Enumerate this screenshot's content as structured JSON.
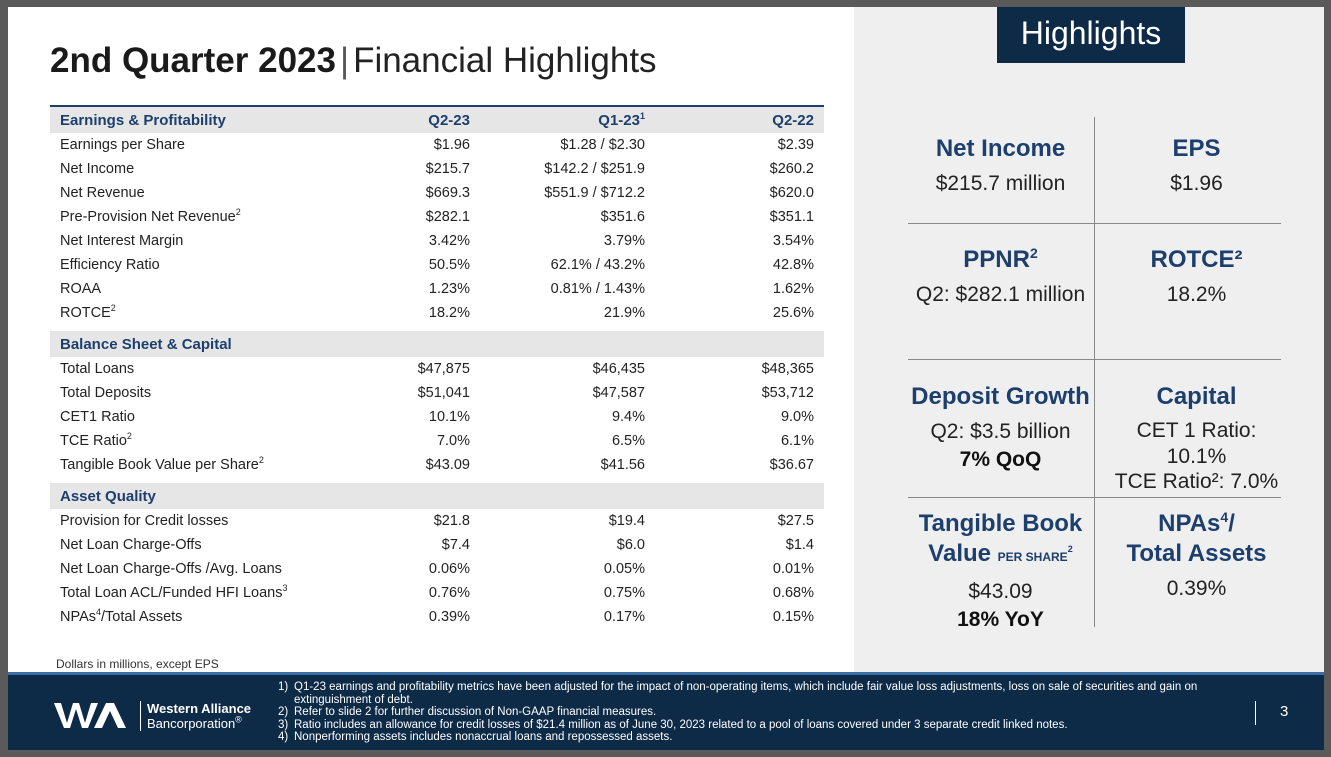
{
  "title": {
    "bold": "2nd Quarter 2023",
    "sep": "|",
    "rest": "Financial Highlights"
  },
  "columns": {
    "c1": "Q2-23",
    "c2": "Q1-23",
    "c2_sup": "1",
    "c3": "Q2-22"
  },
  "sections": {
    "earnings": "Earnings & Profitability",
    "balance": "Balance Sheet & Capital",
    "asset": "Asset Quality"
  },
  "rows": {
    "eps": {
      "label": "Earnings per Share",
      "v1": "$1.96",
      "v2": "$1.28 / $2.30",
      "v3": "$2.39"
    },
    "ni": {
      "label": "Net Income",
      "v1": "$215.7",
      "v2": "$142.2 / $251.9",
      "v3": "$260.2"
    },
    "nr": {
      "label": "Net Revenue",
      "v1": "$669.3",
      "v2": "$551.9 / $712.2",
      "v3": "$620.0"
    },
    "ppnr": {
      "label": "Pre-Provision Net Revenue",
      "sup": "2",
      "v1": "$282.1",
      "v2": "$351.6",
      "v3": "$351.1"
    },
    "nim": {
      "label": "Net Interest Margin",
      "v1": "3.42%",
      "v2": "3.79%",
      "v3": "3.54%"
    },
    "eff": {
      "label": "Efficiency Ratio",
      "v1": "50.5%",
      "v2": "62.1% / 43.2%",
      "v3": "42.8%"
    },
    "roaa": {
      "label": "ROAA",
      "v1": "1.23%",
      "v2": "0.81% / 1.43%",
      "v3": "1.62%"
    },
    "rotce": {
      "label": "ROTCE",
      "sup": "2",
      "v1": "18.2%",
      "v2": "21.9%",
      "v3": "25.6%"
    },
    "loans": {
      "label": "Total Loans",
      "v1": "$47,875",
      "v2": "$46,435",
      "v3": "$48,365"
    },
    "deposits": {
      "label": "Total Deposits",
      "v1": "$51,041",
      "v2": "$47,587",
      "v3": "$53,712"
    },
    "cet1": {
      "label": "CET1 Ratio",
      "v1": "10.1%",
      "v2": "9.4%",
      "v3": "9.0%"
    },
    "tce": {
      "label": "TCE Ratio",
      "sup": "2",
      "v1": "7.0%",
      "v2": "6.5%",
      "v3": "6.1%"
    },
    "tbv": {
      "label": "Tangible Book Value per Share",
      "sup": "2",
      "v1": "$43.09",
      "v2": "$41.56",
      "v3": "$36.67"
    },
    "prov": {
      "label": "Provision for Credit losses",
      "v1": "$21.8",
      "v2": "$19.4",
      "v3": "$27.5"
    },
    "nco": {
      "label": "Net Loan Charge-Offs",
      "v1": "$7.4",
      "v2": "$6.0",
      "v3": "$1.4"
    },
    "ncoavg": {
      "label": "Net Loan Charge-Offs /Avg. Loans",
      "v1": "0.06%",
      "v2": "0.05%",
      "v3": "0.01%"
    },
    "acl": {
      "label": "Total Loan ACL/Funded HFI Loans",
      "sup": "3",
      "v1": "0.76%",
      "v2": "0.75%",
      "v3": "0.68%"
    },
    "npa": {
      "label": "NPAs",
      "sup": "4",
      "label_rest": "/Total Assets",
      "v1": "0.39%",
      "v2": "0.17%",
      "v3": "0.15%"
    }
  },
  "note": "Dollars in millions, except EPS",
  "highlights": {
    "tag": "Highlights",
    "net_income": {
      "title": "Net Income",
      "value": "$215.7 million"
    },
    "eps": {
      "title": "EPS",
      "value": "$1.96"
    },
    "ppnr": {
      "title": "PPNR",
      "sup": "2",
      "value": "Q2: $282.1 million"
    },
    "rotce": {
      "title": "ROTCE²",
      "value": "18.2%"
    },
    "deposit": {
      "title": "Deposit Growth",
      "value": "Q2: $3.5 billion",
      "bold": "7% QoQ"
    },
    "capital": {
      "title": "Capital",
      "line1": "CET 1 Ratio: 10.1%",
      "line2": "TCE Ratio²: 7.0%"
    },
    "tbv": {
      "title1": "Tangible Book",
      "title2": "Value",
      "small": "PER SHARE",
      "small_sup": "2",
      "value": "$43.09",
      "bold": "18% YoY"
    },
    "npa": {
      "title1": "NPAs",
      "sup": "4",
      "title1_rest": "/",
      "title2": "Total Assets",
      "value": "0.39%"
    }
  },
  "footer": {
    "logo_line1": "Western Alliance",
    "logo_line2": "Bancorporation",
    "logo_mark": "®",
    "footnotes": [
      {
        "n": "1)",
        "text": "Q1-23 earnings and profitability metrics have been adjusted for the impact of non-operating items, which include fair value loss adjustments, loss on sale of securities and gain on extinguishment of debt."
      },
      {
        "n": "2)",
        "text": "Refer to slide 2 for further discussion of Non-GAAP financial measures."
      },
      {
        "n": "3)",
        "text": "Ratio includes an allowance for credit losses of $21.4 million as of June 30, 2023 related to a pool of loans covered under 3 separate credit linked notes."
      },
      {
        "n": "4)",
        "text": "Nonperforming assets includes nonaccrual loans and repossessed assets."
      }
    ],
    "page": "3"
  },
  "colors": {
    "navy": "#0d2a47",
    "title_blue": "#1c3f6e",
    "panel_gray": "#efefef"
  }
}
